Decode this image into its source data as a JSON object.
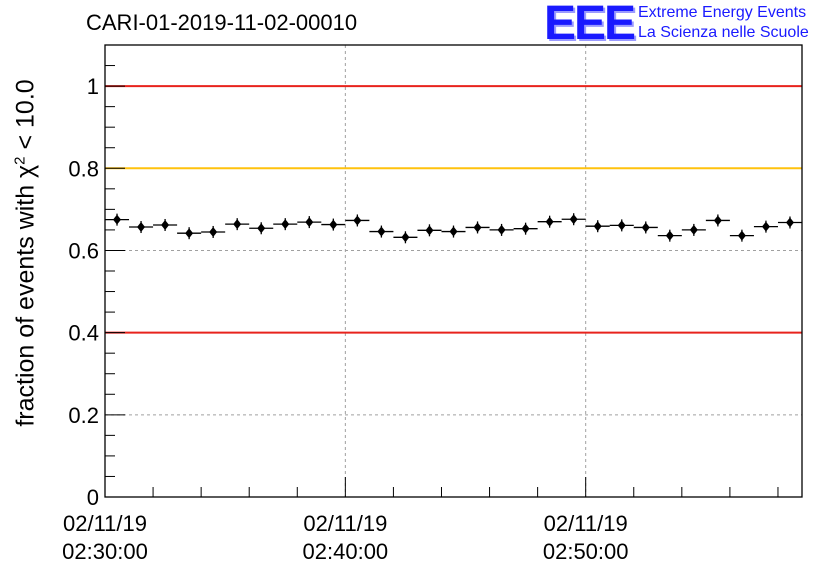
{
  "chart_data": {
    "type": "scatter",
    "title": "CARI-01-2019-11-02-00010",
    "ylabel_prefix": "fraction of events with χ",
    "ylabel_sup": "2",
    "ylabel_suffix": " < 10.0",
    "xlabel": "",
    "ylim": [
      0,
      1.1
    ],
    "xlim_minutes": [
      0,
      29
    ],
    "y_ticks": [
      {
        "value": 0,
        "label": "0"
      },
      {
        "value": 0.2,
        "label": "0.2"
      },
      {
        "value": 0.4,
        "label": "0.4"
      },
      {
        "value": 0.6,
        "label": "0.6"
      },
      {
        "value": 0.8,
        "label": "0.8"
      },
      {
        "value": 1,
        "label": "1"
      }
    ],
    "x_ticks": [
      {
        "minute": 0,
        "date": "02/11/19",
        "time": "02:30:00"
      },
      {
        "minute": 10,
        "date": "02/11/19",
        "time": "02:40:00"
      },
      {
        "minute": 20,
        "date": "02/11/19",
        "time": "02:50:00"
      }
    ],
    "bin_width_minutes": 1,
    "points": [
      {
        "x": 0.5,
        "y": 0.675
      },
      {
        "x": 1.5,
        "y": 0.657
      },
      {
        "x": 2.5,
        "y": 0.662
      },
      {
        "x": 3.5,
        "y": 0.642
      },
      {
        "x": 4.5,
        "y": 0.645
      },
      {
        "x": 5.5,
        "y": 0.664
      },
      {
        "x": 6.5,
        "y": 0.654
      },
      {
        "x": 7.5,
        "y": 0.664
      },
      {
        "x": 8.5,
        "y": 0.669
      },
      {
        "x": 9.5,
        "y": 0.663
      },
      {
        "x": 10.5,
        "y": 0.673
      },
      {
        "x": 11.5,
        "y": 0.646
      },
      {
        "x": 12.5,
        "y": 0.632
      },
      {
        "x": 13.5,
        "y": 0.649
      },
      {
        "x": 14.5,
        "y": 0.646
      },
      {
        "x": 15.5,
        "y": 0.656
      },
      {
        "x": 16.5,
        "y": 0.65
      },
      {
        "x": 17.5,
        "y": 0.653
      },
      {
        "x": 18.5,
        "y": 0.67
      },
      {
        "x": 19.5,
        "y": 0.676
      },
      {
        "x": 20.5,
        "y": 0.659
      },
      {
        "x": 21.5,
        "y": 0.661
      },
      {
        "x": 22.5,
        "y": 0.656
      },
      {
        "x": 23.5,
        "y": 0.636
      },
      {
        "x": 24.5,
        "y": 0.65
      },
      {
        "x": 25.5,
        "y": 0.673
      },
      {
        "x": 26.5,
        "y": 0.636
      },
      {
        "x": 27.5,
        "y": 0.658
      },
      {
        "x": 28.5,
        "y": 0.668
      }
    ],
    "reference_lines": [
      {
        "value": 1.0,
        "color": "#e8231c"
      },
      {
        "value": 0.8,
        "color": "#ffc20e"
      },
      {
        "value": 0.4,
        "color": "#e8231c"
      }
    ],
    "grid": true,
    "marker_color": "#000000"
  },
  "logo": {
    "mark": "EEE",
    "line1": "Extreme Energy Events",
    "line2": "La Scienza nelle Scuole",
    "color": "#1a1aff"
  }
}
